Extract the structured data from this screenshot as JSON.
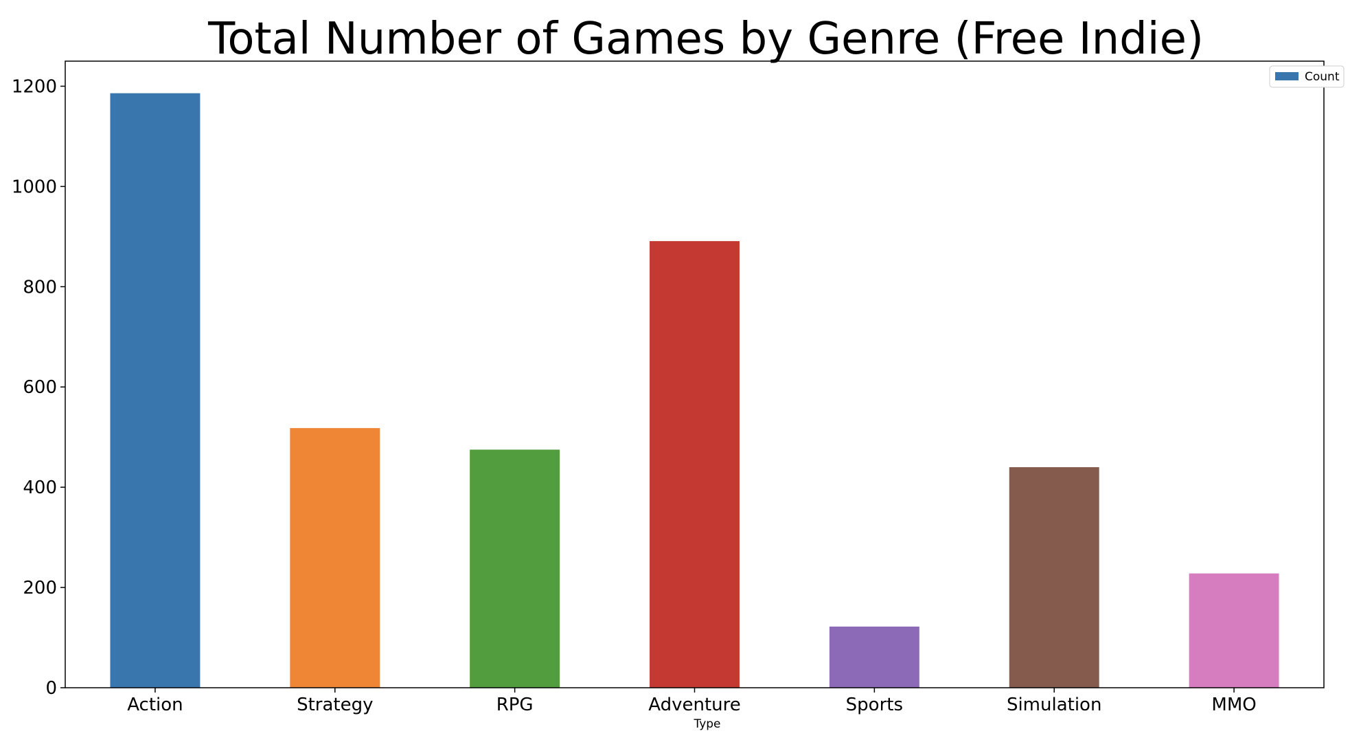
{
  "chart_data": {
    "type": "bar",
    "title": "Total Number of Games by Genre (Free Indie)",
    "xlabel": "Type",
    "ylabel": "",
    "categories": [
      "Action",
      "Strategy",
      "RPG",
      "Adventure",
      "Sports",
      "Simulation",
      "MMO"
    ],
    "series": [
      {
        "name": "Count",
        "values": [
          1186,
          518,
          475,
          891,
          122,
          440,
          228
        ],
        "colors": [
          "#3a76ae",
          "#ef8636",
          "#529e3f",
          "#c43932",
          "#8d6ab8",
          "#845b4d",
          "#d57dbe"
        ]
      }
    ],
    "ylim": [
      0,
      1250
    ],
    "yticks": [
      0,
      200,
      400,
      600,
      800,
      1000,
      1200
    ],
    "grid": false,
    "legend_position": "top-right"
  }
}
